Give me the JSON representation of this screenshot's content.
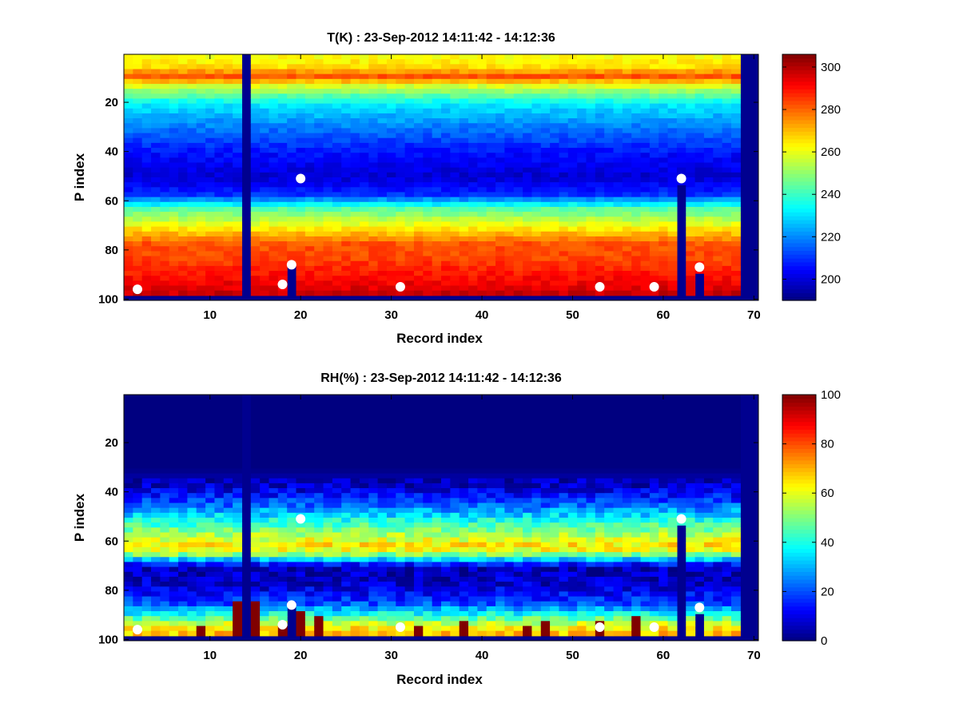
{
  "figure": {
    "background": "#ffffff",
    "colormap": "jet",
    "gap_color": "#00008f",
    "marker_color": "#ffffff"
  },
  "chart_data": [
    {
      "type": "heatmap",
      "title": "T(K) : 23-Sep-2012 14:11:42 - 14:12:36",
      "xlabel": "Record index",
      "ylabel": "P index",
      "xlim": [
        0.5,
        70.5
      ],
      "ylim": [
        0.5,
        100.5
      ],
      "y_reversed": true,
      "xticks": [
        10,
        20,
        30,
        40,
        50,
        60,
        70
      ],
      "yticks": [
        20,
        40,
        60,
        80,
        100
      ],
      "grid": false,
      "colorbar": {
        "location": "right",
        "clim": [
          190,
          306
        ],
        "ticks": [
          200,
          220,
          240,
          260,
          280,
          300
        ]
      },
      "profile_description": "Columns 1-68 filled; column 14 and column 69+ missing; bottom rows 99-100 missing",
      "missing_columns": [
        14
      ],
      "filled_columns_max": 68,
      "missing_bottom_rows_from": 99,
      "column_truncation": [
        {
          "x": 19,
          "bottom_valid_p": 86
        },
        {
          "x": 62,
          "bottom_valid_p": 53
        },
        {
          "x": 64,
          "bottom_valid_p": 89
        }
      ],
      "profile_knots": {
        "p": [
          1,
          5,
          9,
          13,
          20,
          30,
          40,
          50,
          57,
          63,
          70,
          77,
          83,
          90,
          96,
          98
        ],
        "value": [
          262,
          266,
          282,
          258,
          232,
          218,
          206,
          199,
          210,
          244,
          262,
          282,
          284,
          290,
          296,
          299
        ]
      },
      "markers": [
        {
          "x": 2,
          "y": 96
        },
        {
          "x": 18,
          "y": 94
        },
        {
          "x": 19,
          "y": 86
        },
        {
          "x": 20,
          "y": 51
        },
        {
          "x": 31,
          "y": 95
        },
        {
          "x": 53,
          "y": 95
        },
        {
          "x": 59,
          "y": 95
        },
        {
          "x": 62,
          "y": 51
        },
        {
          "x": 64,
          "y": 87
        }
      ]
    },
    {
      "type": "heatmap",
      "title": "RH(%) : 23-Sep-2012 14:11:42 - 14:12:36",
      "xlabel": "Record index",
      "ylabel": "P index",
      "xlim": [
        0.5,
        70.5
      ],
      "ylim": [
        0.5,
        100.5
      ],
      "y_reversed": true,
      "xticks": [
        10,
        20,
        30,
        40,
        50,
        60,
        70
      ],
      "yticks": [
        20,
        40,
        60,
        80,
        100
      ],
      "grid": false,
      "colorbar": {
        "location": "right",
        "clim": [
          0,
          100
        ],
        "ticks": [
          0,
          20,
          40,
          60,
          80,
          100
        ]
      },
      "missing_columns": [
        14
      ],
      "filled_columns_max": 68,
      "missing_bottom_rows_from": 99,
      "column_truncation": [
        {
          "x": 19,
          "bottom_valid_p": 86
        },
        {
          "x": 62,
          "bottom_valid_p": 53
        },
        {
          "x": 64,
          "bottom_valid_p": 89
        }
      ],
      "profile_knots": {
        "p": [
          1,
          30,
          38,
          45,
          52,
          57,
          61,
          64,
          67,
          70,
          78,
          85,
          90,
          94,
          98
        ],
        "value": [
          0,
          0,
          8,
          22,
          42,
          55,
          64,
          60,
          32,
          5,
          8,
          20,
          42,
          62,
          70
        ]
      },
      "saturated_cells": [
        {
          "x": 13,
          "p_from": 85,
          "p_to": 98
        },
        {
          "x": 15,
          "p_from": 84,
          "p_to": 98
        },
        {
          "x": 20,
          "p_from": 88,
          "p_to": 98
        },
        {
          "x": 22,
          "p_from": 90,
          "p_to": 98
        },
        {
          "x": 38,
          "p_from": 92,
          "p_to": 98
        },
        {
          "x": 57,
          "p_from": 90,
          "p_to": 98
        },
        {
          "x": 9,
          "p_from": 95,
          "p_to": 98
        },
        {
          "x": 33,
          "p_from": 94,
          "p_to": 98
        },
        {
          "x": 45,
          "p_from": 94,
          "p_to": 98
        },
        {
          "x": 47,
          "p_from": 92,
          "p_to": 98
        },
        {
          "x": 53,
          "p_from": 93,
          "p_to": 98
        },
        {
          "x": 18,
          "p_from": 95,
          "p_to": 98
        }
      ],
      "markers": [
        {
          "x": 2,
          "y": 96
        },
        {
          "x": 18,
          "y": 94
        },
        {
          "x": 19,
          "y": 86
        },
        {
          "x": 20,
          "y": 51
        },
        {
          "x": 31,
          "y": 95
        },
        {
          "x": 53,
          "y": 95
        },
        {
          "x": 59,
          "y": 95
        },
        {
          "x": 62,
          "y": 51
        },
        {
          "x": 64,
          "y": 87
        }
      ]
    }
  ]
}
